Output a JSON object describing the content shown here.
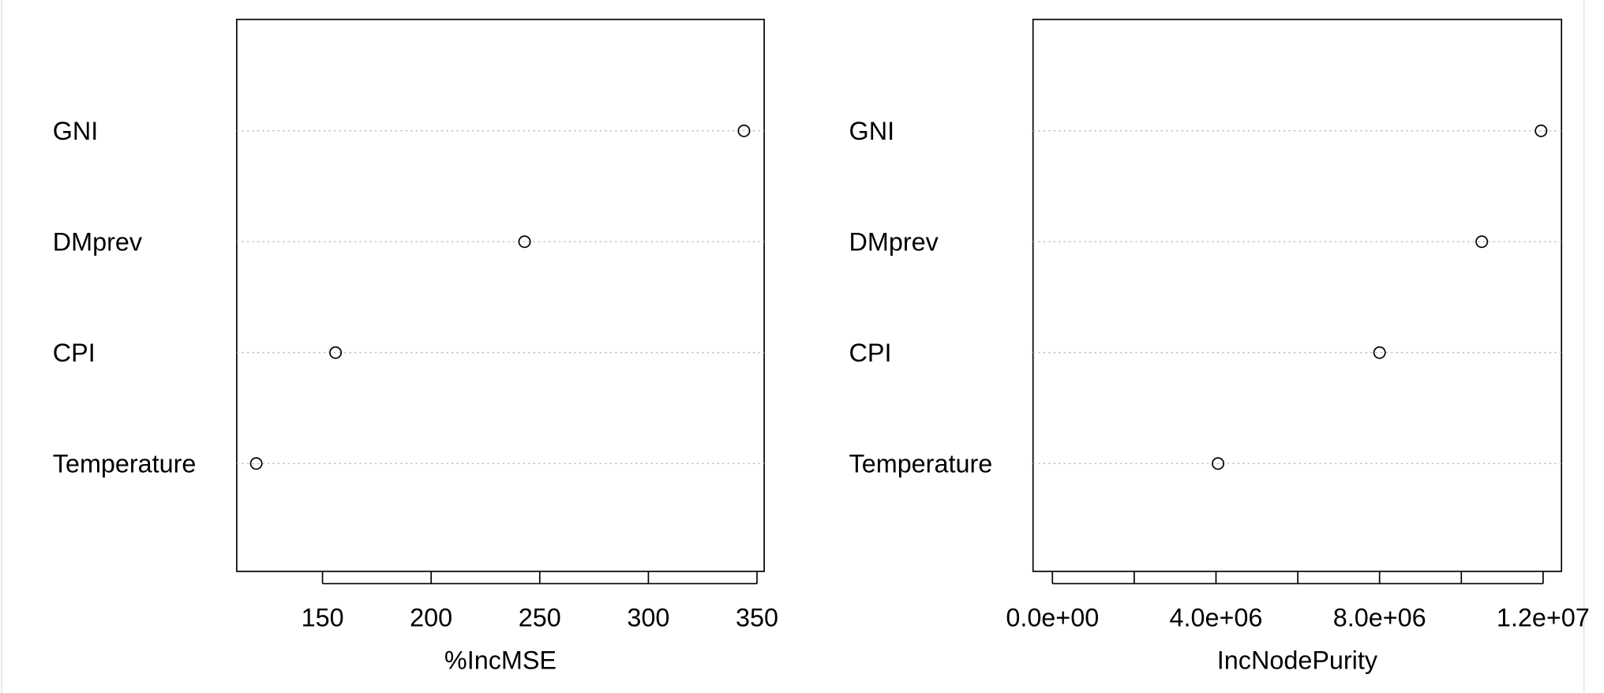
{
  "chart_data": [
    {
      "type": "dot",
      "categories": [
        "GNI",
        "DMprev",
        "CPI",
        "Temperature"
      ],
      "values": [
        344,
        243,
        156,
        119.5
      ],
      "xlabel": "%IncMSE",
      "xlim": [
        110.5,
        353.3
      ],
      "xticks": [
        150,
        200,
        250,
        300,
        350
      ],
      "grid": true,
      "color": "#000000"
    },
    {
      "type": "dot",
      "categories": [
        "GNI",
        "DMprev",
        "CPI",
        "Temperature"
      ],
      "values": [
        11950000,
        10500000,
        8000000,
        4050000
      ],
      "xlabel": "IncNodePurity",
      "xlim": [
        -475000,
        12450000
      ],
      "xticks": [
        {
          "value": 0,
          "label": "0.0e+00"
        },
        {
          "value": 4000000,
          "label": "4.0e+06"
        },
        {
          "value": 8000000,
          "label": "8.0e+06"
        },
        {
          "value": 12000000,
          "label": "1.2e+07"
        }
      ],
      "xminorticks": [
        2000000,
        6000000,
        10000000
      ],
      "grid": true,
      "color": "#000000"
    }
  ]
}
